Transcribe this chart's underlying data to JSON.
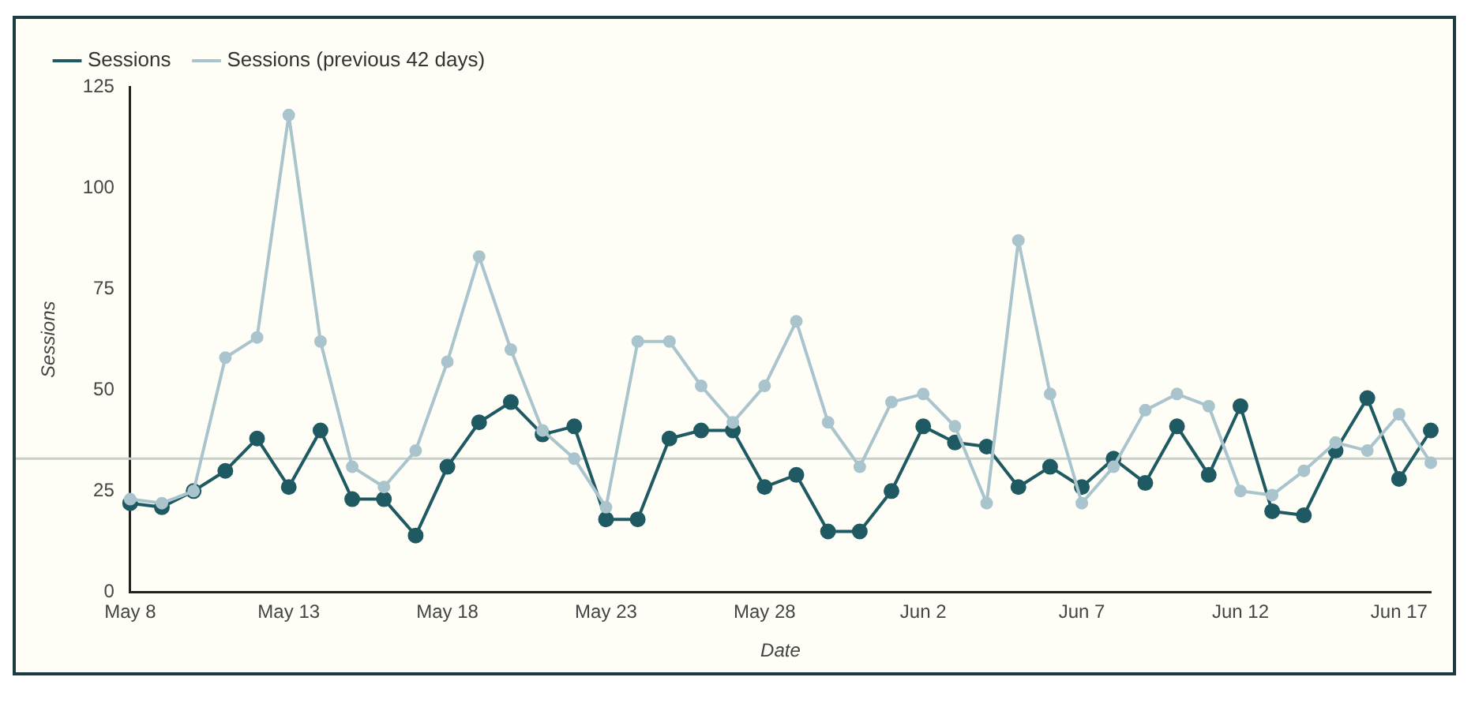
{
  "chart_data": {
    "type": "line",
    "xlabel": "Date",
    "ylabel": "Sessions",
    "categories": [
      "May 8",
      null,
      null,
      null,
      null,
      "May 13",
      null,
      null,
      null,
      null,
      "May 18",
      null,
      null,
      null,
      null,
      "May 23",
      null,
      null,
      null,
      null,
      "May 28",
      null,
      null,
      null,
      null,
      "Jun 2",
      null,
      null,
      null,
      null,
      "Jun 7",
      null,
      null,
      null,
      null,
      "Jun 12",
      null,
      null,
      null,
      null,
      "Jun 17",
      null
    ],
    "series": [
      {
        "name": "Sessions",
        "color": "#1f5a63",
        "values": [
          22,
          21,
          25,
          30,
          38,
          26,
          40,
          23,
          23,
          14,
          31,
          42,
          47,
          39,
          41,
          18,
          18,
          38,
          40,
          40,
          26,
          29,
          15,
          15,
          25,
          41,
          37,
          36,
          26,
          31,
          26,
          33,
          27,
          41,
          29,
          46,
          20,
          19,
          35,
          48,
          28,
          40
        ]
      },
      {
        "name": "Sessions (previous 42 days)",
        "color": "#a9c4cc",
        "values": [
          23,
          22,
          25,
          58,
          63,
          118,
          62,
          31,
          26,
          35,
          57,
          83,
          60,
          40,
          33,
          21,
          62,
          62,
          51,
          42,
          51,
          67,
          42,
          31,
          47,
          49,
          41,
          22,
          87,
          49,
          22,
          31,
          45,
          49,
          46,
          25,
          24,
          30,
          37,
          35,
          44,
          32
        ]
      }
    ],
    "ylim": [
      0,
      125
    ],
    "yticks": [
      0,
      25,
      50,
      75,
      100,
      125
    ],
    "grid": false,
    "legend": "top left",
    "marker": "circle",
    "line_style": "solid",
    "ref_lines": [
      {
        "axis": "y",
        "value": 33,
        "color": "#c8cfc8"
      }
    ]
  }
}
